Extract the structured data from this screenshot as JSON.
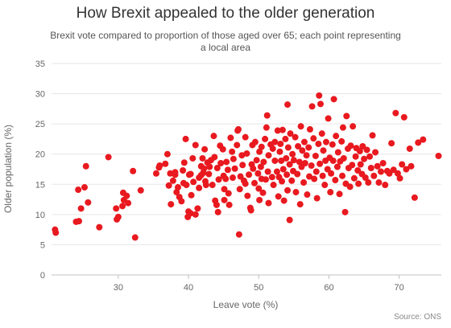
{
  "chart_data": {
    "type": "scatter",
    "title": "How Brexit appealed to the older generation",
    "subtitle": "Brexit vote compared to proportion of those aged over 65; each point representing a local area",
    "xlabel": "Leave vote (%)",
    "ylabel": "Older population (%)",
    "source": "Source: ONS",
    "xlim": [
      20.5,
      76
    ],
    "ylim": [
      0,
      35
    ],
    "x_ticks": [
      30,
      40,
      50,
      60,
      70
    ],
    "y_ticks": [
      0,
      5,
      10,
      15,
      20,
      25,
      30,
      35
    ],
    "grid": "horizontal",
    "legend": "none",
    "color": "#e8191f",
    "points": [
      [
        21.0,
        7.5
      ],
      [
        21.1,
        7.0
      ],
      [
        24.0,
        8.8
      ],
      [
        24.4,
        8.9
      ],
      [
        24.3,
        14.1
      ],
      [
        24.7,
        11.0
      ],
      [
        25.2,
        14.5
      ],
      [
        25.4,
        18.0
      ],
      [
        25.7,
        12.0
      ],
      [
        27.3,
        7.9
      ],
      [
        28.6,
        19.5
      ],
      [
        29.7,
        11.0
      ],
      [
        29.8,
        9.2
      ],
      [
        30.0,
        9.6
      ],
      [
        30.6,
        11.4
      ],
      [
        30.7,
        13.6
      ],
      [
        30.8,
        12.4
      ],
      [
        31.2,
        13.1
      ],
      [
        31.4,
        11.9
      ],
      [
        32.1,
        17.2
      ],
      [
        32.4,
        6.2
      ],
      [
        33.2,
        14.0
      ],
      [
        35.4,
        16.8
      ],
      [
        35.8,
        17.8
      ],
      [
        35.9,
        18.1
      ],
      [
        36.7,
        18.4
      ],
      [
        37.0,
        20.0
      ],
      [
        37.2,
        14.8
      ],
      [
        37.4,
        16.8
      ],
      [
        37.5,
        11.7
      ],
      [
        37.8,
        15.6
      ],
      [
        38.1,
        16.6
      ],
      [
        38.1,
        17.0
      ],
      [
        38.3,
        13.7
      ],
      [
        38.5,
        14.5
      ],
      [
        38.7,
        12.9
      ],
      [
        39.0,
        12.2
      ],
      [
        39.2,
        17.3
      ],
      [
        39.3,
        15.2
      ],
      [
        39.4,
        18.6
      ],
      [
        39.6,
        22.5
      ],
      [
        39.7,
        14.9
      ],
      [
        39.9,
        9.6
      ],
      [
        40.0,
        10.5
      ],
      [
        40.1,
        16.6
      ],
      [
        40.3,
        16.7
      ],
      [
        40.3,
        10.2
      ],
      [
        40.4,
        13.2
      ],
      [
        40.6,
        19.3
      ],
      [
        40.7,
        15.4
      ],
      [
        41.0,
        21.5
      ],
      [
        41.0,
        10.0
      ],
      [
        41.3,
        11.0
      ],
      [
        41.5,
        16.1
      ],
      [
        41.5,
        14.4
      ],
      [
        41.8,
        18.0
      ],
      [
        41.8,
        16.5
      ],
      [
        42.0,
        19.3
      ],
      [
        42.1,
        16.9
      ],
      [
        42.2,
        17.6
      ],
      [
        42.3,
        20.8
      ],
      [
        42.4,
        15.5
      ],
      [
        42.5,
        14.9
      ],
      [
        42.7,
        18.6
      ],
      [
        42.9,
        16.7
      ],
      [
        43.0,
        17.9
      ],
      [
        43.2,
        19.0
      ],
      [
        43.4,
        14.9
      ],
      [
        43.6,
        23.0
      ],
      [
        43.7,
        19.5
      ],
      [
        43.8,
        12.3
      ],
      [
        44.0,
        11.6
      ],
      [
        44.1,
        17.7
      ],
      [
        44.2,
        10.4
      ],
      [
        44.3,
        15.8
      ],
      [
        44.5,
        21.4
      ],
      [
        44.6,
        18.5
      ],
      [
        44.9,
        20.8
      ],
      [
        45.0,
        16.4
      ],
      [
        45.1,
        12.4
      ],
      [
        45.1,
        14.2
      ],
      [
        45.3,
        15.9
      ],
      [
        45.4,
        18.7
      ],
      [
        45.6,
        17.4
      ],
      [
        45.7,
        13.5
      ],
      [
        45.8,
        11.6
      ],
      [
        46.0,
        22.7
      ],
      [
        46.2,
        20.4
      ],
      [
        46.3,
        16.1
      ],
      [
        46.4,
        19.2
      ],
      [
        46.6,
        17.6
      ],
      [
        46.9,
        21.5
      ],
      [
        47.0,
        23.9
      ],
      [
        47.1,
        24.1
      ],
      [
        47.2,
        6.7
      ],
      [
        47.3,
        14.2
      ],
      [
        47.4,
        16.3
      ],
      [
        47.6,
        19.8
      ],
      [
        47.7,
        18.2
      ],
      [
        47.9,
        15.6
      ],
      [
        48.1,
        22.8
      ],
      [
        48.1,
        15.1
      ],
      [
        48.3,
        20.1
      ],
      [
        48.4,
        13.1
      ],
      [
        48.6,
        16.6
      ],
      [
        48.8,
        11.1
      ],
      [
        48.9,
        10.7
      ],
      [
        49.0,
        18.3
      ],
      [
        49.1,
        21.5
      ],
      [
        49.2,
        17.6
      ],
      [
        49.4,
        15.2
      ],
      [
        49.5,
        22.0
      ],
      [
        49.7,
        19.0
      ],
      [
        49.9,
        16.8
      ],
      [
        50.0,
        14.3
      ],
      [
        50.1,
        20.4
      ],
      [
        50.1,
        12.4
      ],
      [
        50.3,
        17.9
      ],
      [
        50.4,
        15.9
      ],
      [
        50.4,
        21.2
      ],
      [
        50.6,
        13.6
      ],
      [
        50.7,
        18.7
      ],
      [
        50.9,
        22.5
      ],
      [
        51.0,
        15.8
      ],
      [
        51.1,
        24.4
      ],
      [
        51.2,
        26.4
      ],
      [
        51.3,
        17.1
      ],
      [
        51.4,
        19.8
      ],
      [
        51.4,
        11.9
      ],
      [
        51.7,
        21.6
      ],
      [
        51.9,
        16.2
      ],
      [
        52.0,
        20.9
      ],
      [
        52.1,
        14.9
      ],
      [
        52.3,
        22.0
      ],
      [
        52.3,
        18.9
      ],
      [
        52.6,
        17.1
      ],
      [
        52.7,
        23.9
      ],
      [
        52.8,
        13.0
      ],
      [
        52.9,
        16.2
      ],
      [
        53.0,
        20.4
      ],
      [
        53.1,
        21.7
      ],
      [
        53.2,
        18.9
      ],
      [
        53.3,
        15.5
      ],
      [
        53.4,
        24.0
      ],
      [
        53.5,
        17.5
      ],
      [
        53.6,
        12.3
      ],
      [
        53.8,
        22.5
      ],
      [
        53.9,
        19.3
      ],
      [
        54.0,
        16.6
      ],
      [
        54.1,
        14.0
      ],
      [
        54.1,
        28.2
      ],
      [
        54.2,
        21.1
      ],
      [
        54.4,
        18.3
      ],
      [
        54.4,
        9.1
      ],
      [
        54.5,
        23.4
      ],
      [
        54.7,
        15.6
      ],
      [
        54.8,
        20.0
      ],
      [
        54.9,
        17.2
      ],
      [
        55.0,
        19.0
      ],
      [
        55.2,
        22.8
      ],
      [
        55.3,
        13.7
      ],
      [
        55.5,
        16.7
      ],
      [
        55.6,
        21.3
      ],
      [
        55.8,
        18.7
      ],
      [
        55.9,
        11.7
      ],
      [
        56.0,
        24.6
      ],
      [
        56.1,
        17.9
      ],
      [
        56.2,
        20.6
      ],
      [
        56.4,
        15.3
      ],
      [
        56.5,
        22.0
      ],
      [
        56.6,
        18.5
      ],
      [
        56.8,
        19.8
      ],
      [
        56.9,
        13.3
      ],
      [
        57.1,
        21.1
      ],
      [
        57.2,
        16.3
      ],
      [
        57.3,
        24.1
      ],
      [
        57.5,
        18.1
      ],
      [
        57.6,
        27.9
      ],
      [
        57.8,
        22.6
      ],
      [
        57.9,
        15.9
      ],
      [
        58.1,
        19.7
      ],
      [
        58.2,
        17.1
      ],
      [
        58.3,
        12.7
      ],
      [
        58.5,
        21.7
      ],
      [
        58.6,
        29.7
      ],
      [
        58.7,
        18.4
      ],
      [
        58.8,
        28.3
      ],
      [
        59.0,
        23.4
      ],
      [
        59.1,
        16.4
      ],
      [
        59.2,
        20.6
      ],
      [
        59.4,
        14.9
      ],
      [
        59.5,
        18.9
      ],
      [
        59.6,
        22.0
      ],
      [
        59.8,
        17.5
      ],
      [
        59.9,
        25.9
      ],
      [
        60.1,
        19.4
      ],
      [
        60.2,
        13.7
      ],
      [
        60.3,
        16.8
      ],
      [
        60.5,
        21.6
      ],
      [
        60.6,
        18.9
      ],
      [
        60.7,
        29.1
      ],
      [
        60.9,
        15.7
      ],
      [
        61.0,
        23.0
      ],
      [
        61.2,
        17.9
      ],
      [
        61.3,
        20.3
      ],
      [
        61.5,
        13.4
      ],
      [
        61.6,
        18.8
      ],
      [
        61.8,
        22.1
      ],
      [
        61.9,
        16.4
      ],
      [
        62.0,
        24.4
      ],
      [
        62.1,
        19.3
      ],
      [
        62.3,
        10.4
      ],
      [
        62.4,
        15.1
      ],
      [
        62.5,
        26.3
      ],
      [
        62.7,
        20.9
      ],
      [
        62.8,
        17.7
      ],
      [
        63.0,
        14.6
      ],
      [
        63.1,
        21.4
      ],
      [
        63.3,
        18.2
      ],
      [
        63.4,
        24.6
      ],
      [
        63.6,
        16.0
      ],
      [
        63.8,
        19.6
      ],
      [
        63.9,
        21.0
      ],
      [
        64.1,
        17.3
      ],
      [
        64.2,
        15.1
      ],
      [
        64.4,
        20.5
      ],
      [
        64.5,
        18.3
      ],
      [
        64.7,
        16.7
      ],
      [
        64.8,
        21.3
      ],
      [
        65.0,
        19.2
      ],
      [
        65.2,
        16.1
      ],
      [
        65.4,
        20.7
      ],
      [
        65.6,
        15.3
      ],
      [
        65.8,
        19.6
      ],
      [
        66.0,
        17.7
      ],
      [
        66.2,
        23.1
      ],
      [
        66.4,
        16.4
      ],
      [
        66.6,
        20.3
      ],
      [
        66.9,
        18.0
      ],
      [
        67.1,
        15.3
      ],
      [
        67.4,
        17.1
      ],
      [
        67.7,
        18.5
      ],
      [
        68.0,
        14.9
      ],
      [
        68.3,
        17.2
      ],
      [
        68.6,
        16.8
      ],
      [
        68.9,
        21.8
      ],
      [
        69.2,
        17.4
      ],
      [
        69.5,
        26.8
      ],
      [
        69.8,
        16.8
      ],
      [
        70.1,
        16.0
      ],
      [
        70.4,
        18.3
      ],
      [
        70.7,
        26.1
      ],
      [
        71.0,
        17.5
      ],
      [
        71.5,
        20.9
      ],
      [
        71.7,
        18.0
      ],
      [
        72.2,
        12.8
      ],
      [
        72.7,
        21.9
      ],
      [
        73.4,
        22.4
      ],
      [
        75.6,
        19.7
      ]
    ]
  }
}
